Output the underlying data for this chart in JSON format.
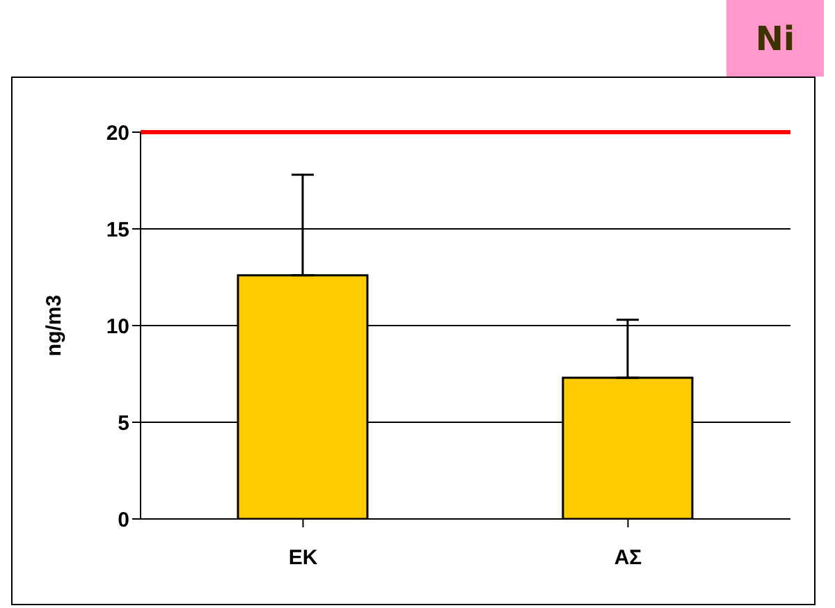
{
  "chart_data": {
    "type": "bar",
    "title": "Ni",
    "ylabel": "ng/m3",
    "categories": [
      "ΕΚ",
      "ΑΣ"
    ],
    "values": [
      12.6,
      7.3
    ],
    "color": "#ffcc00",
    "errors": [
      [
        12.6,
        17.8
      ],
      [
        7.3,
        10.3
      ]
    ],
    "ylim": [
      0,
      20
    ],
    "yticks": [
      0,
      5,
      10,
      15,
      20
    ],
    "grid": "y",
    "ref_lines": [
      {
        "axis": "y",
        "value": 20,
        "color": "#ff0000"
      }
    ]
  }
}
